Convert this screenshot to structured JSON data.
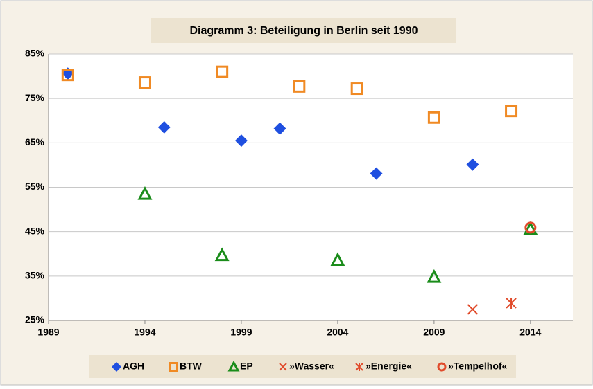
{
  "chart_data": {
    "type": "scatter",
    "title": "Diagramm 3: Beteiligung in Berlin seit 1990",
    "xlim": [
      1989,
      2016.2
    ],
    "xticks": [
      1989,
      1994,
      1999,
      2004,
      2009,
      2014
    ],
    "ylim": [
      25,
      85
    ],
    "yticks": [
      {
        "value": 25,
        "label": "25%"
      },
      {
        "value": 35,
        "label": "35%"
      },
      {
        "value": 45,
        "label": "45%"
      },
      {
        "value": 55,
        "label": "55%"
      },
      {
        "value": 65,
        "label": "65%"
      },
      {
        "value": 75,
        "label": "75%"
      },
      {
        "value": 85,
        "label": "85%"
      }
    ],
    "grid": true,
    "legend": "bottom",
    "series": [
      {
        "name": "AGH",
        "color": "#1f4fe0",
        "marker": "diamond",
        "x": [
          1990,
          1995,
          1999,
          2001,
          2006,
          2011
        ],
        "values": [
          80.6,
          68.5,
          65.5,
          68.2,
          58.1,
          60.1
        ]
      },
      {
        "name": "BTW",
        "color": "#f08a24",
        "marker": "square",
        "x": [
          1990,
          1994,
          1998,
          2002,
          2005,
          2009,
          2013
        ],
        "values": [
          80.3,
          78.6,
          81.0,
          77.7,
          77.2,
          70.7,
          72.2
        ]
      },
      {
        "name": "EP",
        "color": "#1a8c1a",
        "marker": "triangle",
        "x": [
          1994,
          1998,
          2004,
          2009,
          2014
        ],
        "values": [
          53.5,
          39.7,
          38.6,
          34.8,
          45.6
        ]
      },
      {
        "name": "»Wasser«",
        "color": "#e04a2a",
        "marker": "x",
        "x": [
          2011
        ],
        "values": [
          27.5
        ]
      },
      {
        "name": "»Energie«",
        "color": "#e04a2a",
        "marker": "asterisk",
        "x": [
          2013
        ],
        "values": [
          28.9
        ]
      },
      {
        "name": "»Tempelhof«",
        "color": "#e04a2a",
        "marker": "circle",
        "x": [
          2014
        ],
        "values": [
          45.9
        ]
      }
    ]
  }
}
